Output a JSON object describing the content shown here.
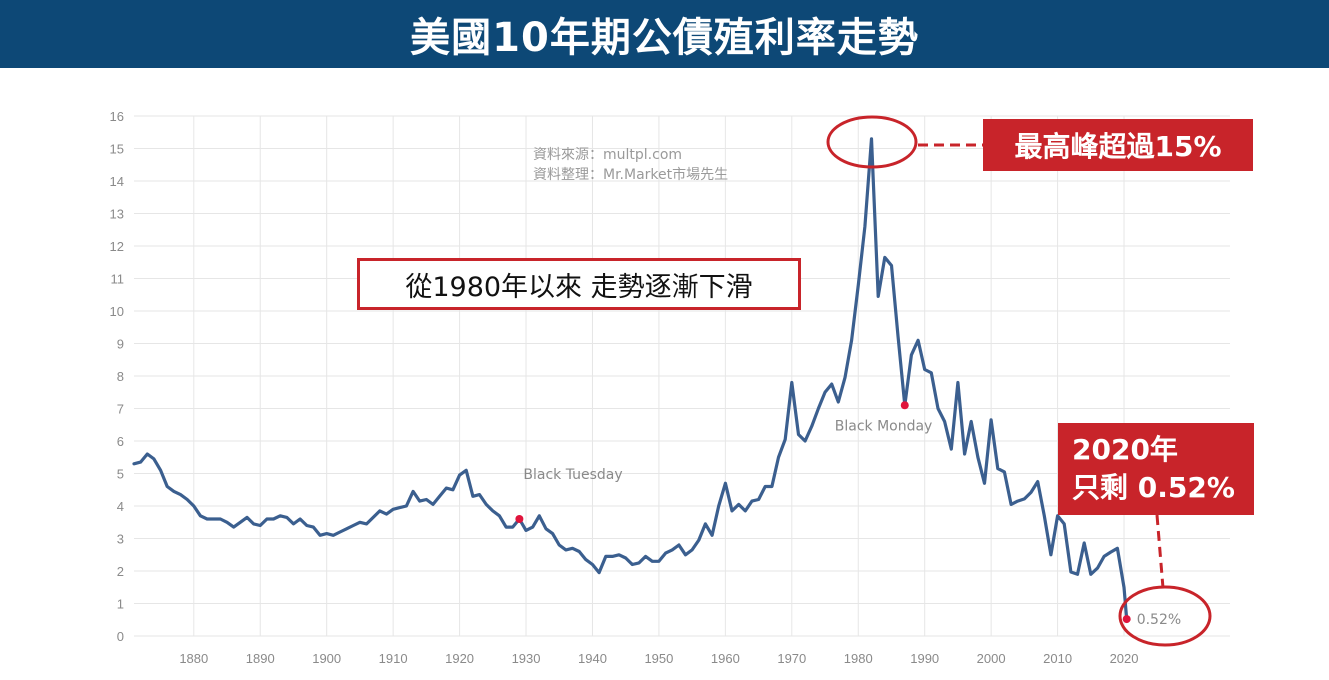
{
  "header": {
    "title": "美國10年期公債殖利率走勢"
  },
  "source": {
    "line1": "資料來源：multpl.com",
    "line2": "資料整理：Mr.Market市場先生"
  },
  "annotations": {
    "trend_text": "從1980年以來 走勢逐漸下滑",
    "peak_text": "最高峰超過15%",
    "latest_line1": "2020年",
    "latest_line2": "只剩 0.52%",
    "latest_value_label": "0.52%",
    "black_tuesday": "Black Tuesday",
    "black_monday": "Black Monday"
  },
  "colors": {
    "header_bg": "#0d4876",
    "line": "#3b5f8f",
    "accent": "#c8242a",
    "marker": "#e0143c"
  },
  "chart_data": {
    "type": "line",
    "title": "美國10年期公債殖利率走勢",
    "xlabel": "",
    "ylabel": "",
    "xlim": [
      1871,
      2020
    ],
    "ylim": [
      0,
      16
    ],
    "yticks": [
      "0",
      "1",
      "2",
      "3",
      "4",
      "5",
      "6",
      "7",
      "8",
      "9",
      "10",
      "11",
      "12",
      "13",
      "14",
      "15",
      "16"
    ],
    "xticks": [
      "1880",
      "1890",
      "1900",
      "1910",
      "1920",
      "1930",
      "1940",
      "1950",
      "1960",
      "1970",
      "1980",
      "1990",
      "2000",
      "2010",
      "2020"
    ],
    "grid": true,
    "series": [
      {
        "points": [
          [
            1871,
            5.3
          ],
          [
            1872,
            5.35
          ],
          [
            1873,
            5.6
          ],
          [
            1874,
            5.45
          ],
          [
            1875,
            5.1
          ],
          [
            1876,
            4.6
          ],
          [
            1877,
            4.45
          ],
          [
            1878,
            4.35
          ],
          [
            1879,
            4.2
          ],
          [
            1880,
            4.0
          ],
          [
            1881,
            3.7
          ],
          [
            1882,
            3.6
          ],
          [
            1883,
            3.6
          ],
          [
            1884,
            3.6
          ],
          [
            1885,
            3.5
          ],
          [
            1886,
            3.35
          ],
          [
            1887,
            3.5
          ],
          [
            1888,
            3.65
          ],
          [
            1889,
            3.45
          ],
          [
            1890,
            3.4
          ],
          [
            1891,
            3.6
          ],
          [
            1892,
            3.6
          ],
          [
            1893,
            3.7
          ],
          [
            1894,
            3.65
          ],
          [
            1895,
            3.45
          ],
          [
            1896,
            3.6
          ],
          [
            1897,
            3.4
          ],
          [
            1898,
            3.35
          ],
          [
            1899,
            3.1
          ],
          [
            1900,
            3.15
          ],
          [
            1901,
            3.1
          ],
          [
            1902,
            3.2
          ],
          [
            1903,
            3.3
          ],
          [
            1904,
            3.4
          ],
          [
            1905,
            3.5
          ],
          [
            1906,
            3.45
          ],
          [
            1907,
            3.65
          ],
          [
            1908,
            3.85
          ],
          [
            1909,
            3.75
          ],
          [
            1910,
            3.9
          ],
          [
            1911,
            3.95
          ],
          [
            1912,
            4.0
          ],
          [
            1913,
            4.45
          ],
          [
            1914,
            4.15
          ],
          [
            1915,
            4.2
          ],
          [
            1916,
            4.05
          ],
          [
            1917,
            4.3
          ],
          [
            1918,
            4.55
          ],
          [
            1919,
            4.5
          ],
          [
            1920,
            4.95
          ],
          [
            1921,
            5.1
          ],
          [
            1922,
            4.3
          ],
          [
            1923,
            4.35
          ],
          [
            1924,
            4.05
          ],
          [
            1925,
            3.85
          ],
          [
            1926,
            3.7
          ],
          [
            1927,
            3.35
          ],
          [
            1928,
            3.35
          ],
          [
            1929,
            3.6
          ],
          [
            1930,
            3.25
          ],
          [
            1931,
            3.35
          ],
          [
            1932,
            3.7
          ],
          [
            1933,
            3.3
          ],
          [
            1934,
            3.15
          ],
          [
            1935,
            2.8
          ],
          [
            1936,
            2.65
          ],
          [
            1937,
            2.7
          ],
          [
            1938,
            2.6
          ],
          [
            1939,
            2.35
          ],
          [
            1940,
            2.2
          ],
          [
            1941,
            1.95
          ],
          [
            1942,
            2.45
          ],
          [
            1943,
            2.45
          ],
          [
            1944,
            2.5
          ],
          [
            1945,
            2.4
          ],
          [
            1946,
            2.2
          ],
          [
            1947,
            2.25
          ],
          [
            1948,
            2.45
          ],
          [
            1949,
            2.3
          ],
          [
            1950,
            2.3
          ],
          [
            1951,
            2.55
          ],
          [
            1952,
            2.65
          ],
          [
            1953,
            2.8
          ],
          [
            1954,
            2.5
          ],
          [
            1955,
            2.65
          ],
          [
            1956,
            2.95
          ],
          [
            1957,
            3.45
          ],
          [
            1958,
            3.1
          ],
          [
            1959,
            4.0
          ],
          [
            1960,
            4.7
          ],
          [
            1961,
            3.85
          ],
          [
            1962,
            4.05
          ],
          [
            1963,
            3.85
          ],
          [
            1964,
            4.15
          ],
          [
            1965,
            4.2
          ],
          [
            1966,
            4.6
          ],
          [
            1967,
            4.6
          ],
          [
            1968,
            5.5
          ],
          [
            1969,
            6.05
          ],
          [
            1970,
            7.8
          ],
          [
            1971,
            6.2
          ],
          [
            1972,
            6.0
          ],
          [
            1973,
            6.45
          ],
          [
            1974,
            7.0
          ],
          [
            1975,
            7.5
          ],
          [
            1976,
            7.75
          ],
          [
            1977,
            7.2
          ],
          [
            1978,
            7.95
          ],
          [
            1979,
            9.1
          ],
          [
            1980,
            10.8
          ],
          [
            1981,
            12.6
          ],
          [
            1982,
            15.3
          ],
          [
            1983,
            10.45
          ],
          [
            1984,
            11.65
          ],
          [
            1985,
            11.4
          ],
          [
            1986,
            9.2
          ],
          [
            1987,
            7.1
          ],
          [
            1988,
            8.65
          ],
          [
            1989,
            9.1
          ],
          [
            1990,
            8.2
          ],
          [
            1991,
            8.1
          ],
          [
            1992,
            7.0
          ],
          [
            1993,
            6.6
          ],
          [
            1994,
            5.75
          ],
          [
            1995,
            7.8
          ],
          [
            1996,
            5.6
          ],
          [
            1997,
            6.6
          ],
          [
            1998,
            5.5
          ],
          [
            1999,
            4.7
          ],
          [
            2000,
            6.65
          ],
          [
            2001,
            5.15
          ],
          [
            2002,
            5.05
          ],
          [
            2003,
            4.05
          ],
          [
            2004,
            4.15
          ],
          [
            2005,
            4.22
          ],
          [
            2006,
            4.42
          ],
          [
            2007,
            4.75
          ],
          [
            2008,
            3.7
          ],
          [
            2009,
            2.5
          ],
          [
            2010,
            3.7
          ],
          [
            2011,
            3.45
          ],
          [
            2012,
            1.97
          ],
          [
            2013,
            1.9
          ],
          [
            2014,
            2.86
          ],
          [
            2015,
            1.9
          ],
          [
            2016,
            2.09
          ],
          [
            2017,
            2.45
          ],
          [
            2018,
            2.58
          ],
          [
            2019,
            2.7
          ],
          [
            2020,
            1.5
          ],
          [
            2020.4,
            0.52
          ]
        ]
      }
    ],
    "markers": [
      {
        "label": "Black Tuesday",
        "x": 1929,
        "y": 3.6
      },
      {
        "label": "Black Monday",
        "x": 1987,
        "y": 7.1
      },
      {
        "label": "0.52%",
        "x": 2020.4,
        "y": 0.52
      }
    ]
  }
}
